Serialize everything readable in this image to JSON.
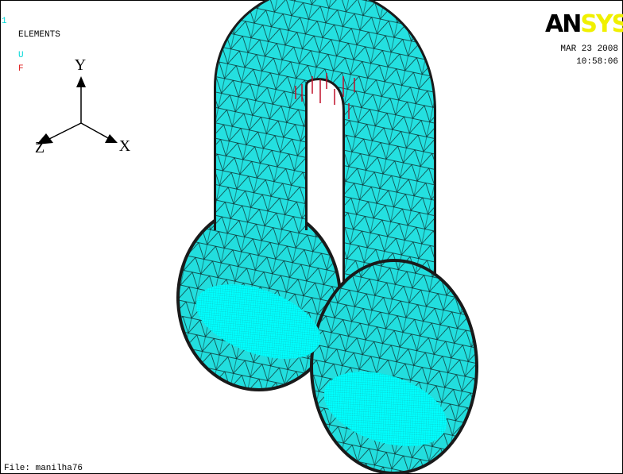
{
  "window": {
    "number": "1",
    "display": "ELEMENTS",
    "legend": [
      "U",
      "F"
    ],
    "axes": {
      "y": "Y",
      "z": "Z",
      "x": "X"
    },
    "logo": {
      "dark": "AN",
      "light": "SYS"
    },
    "date": "MAR 23 2008",
    "time": "10:58:06",
    "file": "File: manilha76"
  }
}
